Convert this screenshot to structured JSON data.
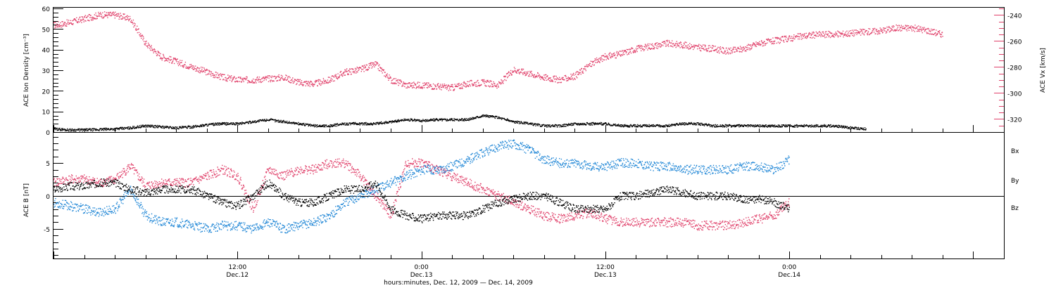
{
  "colors": {
    "density": "#000000",
    "speed": "#e0406a",
    "bx": "#000000",
    "by": "#1f86d6",
    "bz": "#e0406a",
    "axis": "#000000"
  },
  "chart_data": [
    {
      "type": "scatter",
      "panel": "top",
      "ylabel_left": "ACE Ion Density [cm⁻³]",
      "ylabel_right": "ACE Vx [km/s]",
      "yticks_left": [
        "0",
        "10",
        "20",
        "30",
        "40",
        "50",
        "60"
      ],
      "yticks_right": [
        "-240",
        "-260",
        "-280",
        "-300",
        "-320"
      ],
      "ylim_left": [
        0,
        60
      ],
      "ylim_right": [
        -330,
        -235
      ],
      "x_hours": [
        0,
        62
      ],
      "series": [
        {
          "axis": "left",
          "color": "#000000",
          "x": [
            0,
            1,
            2,
            3,
            4,
            5,
            6,
            7,
            8,
            9,
            10,
            11,
            12,
            13,
            14,
            15,
            16,
            17,
            18,
            19,
            20,
            21,
            22,
            23,
            24,
            25,
            26,
            27,
            28,
            29,
            30,
            31,
            32,
            33,
            34,
            35,
            36,
            37,
            38,
            39,
            40,
            41,
            42,
            43,
            44,
            45,
            46,
            47,
            48,
            49,
            50,
            51,
            52,
            53
          ],
          "y": [
            1.5,
            1,
            1,
            1.2,
            1.5,
            2,
            3,
            2.5,
            2,
            2.5,
            3.5,
            4,
            4,
            5,
            6,
            5,
            4,
            3,
            3,
            4,
            4,
            4,
            5,
            6,
            5.5,
            6,
            6,
            6,
            8,
            7,
            5,
            4,
            3,
            3,
            4,
            4,
            4,
            3,
            3,
            3,
            3,
            4,
            4,
            3,
            3,
            3,
            3,
            3,
            3,
            3,
            3,
            3,
            2,
            1.5
          ]
        },
        {
          "axis": "right",
          "color": "#e0406a",
          "x": [
            0,
            1,
            2,
            3,
            4,
            5,
            6,
            7,
            8,
            9,
            10,
            11,
            12,
            13,
            14,
            15,
            16,
            17,
            18,
            19,
            20,
            21,
            22,
            23,
            24,
            25,
            26,
            27,
            28,
            29,
            30,
            31,
            32,
            33,
            34,
            35,
            36,
            37,
            38,
            39,
            40,
            41,
            42,
            43,
            44,
            45,
            46,
            47,
            48,
            49,
            50,
            51,
            52,
            53,
            54,
            55,
            56,
            57,
            58
          ],
          "y": [
            -248,
            -246,
            -243,
            -240,
            -240,
            -243,
            -262,
            -272,
            -276,
            -280,
            -284,
            -288,
            -290,
            -290,
            -289,
            -288,
            -292,
            -293,
            -290,
            -284,
            -282,
            -278,
            -290,
            -294,
            -294,
            -295,
            -296,
            -293,
            -292,
            -294,
            -282,
            -285,
            -288,
            -290,
            -287,
            -278,
            -272,
            -270,
            -266,
            -264,
            -262,
            -263,
            -265,
            -266,
            -268,
            -266,
            -262,
            -260,
            -258,
            -256,
            -255,
            -255,
            -254,
            -253,
            -252,
            -250,
            -250,
            -252,
            -255
          ]
        }
      ]
    },
    {
      "type": "scatter",
      "panel": "bottom",
      "ylabel_left": "ACE B [nT]",
      "yticks_left": [
        "-5",
        "0",
        "5"
      ],
      "ylim_left": [
        -9.5,
        9.5
      ],
      "x_hours": [
        0,
        62
      ],
      "xticks": [
        {
          "t": 12,
          "time": "12:00",
          "day": "Dec.12"
        },
        {
          "t": 24,
          "time": "0:00",
          "day": "Dec.13"
        },
        {
          "t": 36,
          "time": "12:00",
          "day": "Dec.13"
        },
        {
          "t": 48,
          "time": "0:00",
          "day": "Dec.14"
        }
      ],
      "xlabel": "hours:minutes, Dec. 12, 2009 — Dec. 14, 2009",
      "series": [
        {
          "name": "Bx",
          "color": "#000000",
          "x": [
            0,
            1,
            2,
            3,
            4,
            5,
            6,
            7,
            8,
            9,
            10,
            11,
            12,
            13,
            14,
            15,
            16,
            17,
            18,
            19,
            20,
            21,
            22,
            23,
            24,
            25,
            26,
            27,
            28,
            29,
            30,
            31,
            32,
            33,
            34,
            35,
            36,
            37,
            38,
            39,
            40,
            41,
            42,
            43,
            44,
            45,
            46,
            47,
            48
          ],
          "y": [
            1,
            1.5,
            1.5,
            2,
            2,
            1,
            0.5,
            1,
            1,
            1,
            0,
            -1,
            -1.5,
            0,
            2,
            0,
            -1,
            -1,
            0,
            1,
            1,
            2,
            -2,
            -3,
            -3.5,
            -3,
            -3,
            -3,
            -2,
            -1,
            -0.5,
            0,
            0,
            -1,
            -2,
            -2,
            -2,
            0,
            0,
            0.5,
            1,
            0.5,
            0,
            0,
            0,
            -0.5,
            -0.5,
            -1,
            -2
          ]
        },
        {
          "name": "By",
          "color": "#1f86d6",
          "x": [
            0,
            1,
            2,
            3,
            4,
            5,
            6,
            7,
            8,
            9,
            10,
            11,
            12,
            13,
            14,
            15,
            16,
            17,
            18,
            19,
            20,
            21,
            22,
            23,
            24,
            25,
            26,
            27,
            28,
            29,
            30,
            31,
            32,
            33,
            34,
            35,
            36,
            37,
            38,
            39,
            40,
            41,
            42,
            43,
            44,
            45,
            46,
            47,
            48
          ],
          "y": [
            -1,
            -1.5,
            -2,
            -2.5,
            -2,
            1,
            -3,
            -4,
            -4,
            -4.5,
            -5,
            -4.5,
            -4.5,
            -5,
            -4,
            -5,
            -4.5,
            -4,
            -3,
            -1,
            0,
            1,
            2,
            3,
            4,
            4,
            4.5,
            5.5,
            6.5,
            7.5,
            8,
            7,
            5.5,
            5,
            5,
            4.5,
            4.5,
            5,
            5,
            4.5,
            4.5,
            4,
            4,
            4,
            4,
            4.5,
            4.5,
            4,
            5.5
          ]
        },
        {
          "name": "Bz",
          "color": "#e0406a",
          "x": [
            0,
            1,
            2,
            3,
            4,
            5,
            6,
            7,
            8,
            9,
            10,
            11,
            12,
            13,
            14,
            15,
            16,
            17,
            18,
            19,
            20,
            21,
            22,
            23,
            24,
            25,
            26,
            27,
            28,
            29,
            30,
            31,
            32,
            33,
            34,
            35,
            36,
            37,
            38,
            39,
            40,
            41,
            42,
            43,
            44,
            45,
            46,
            47,
            48
          ],
          "y": [
            2,
            2.5,
            2.5,
            2,
            2.5,
            4.5,
            1.5,
            2,
            2,
            2,
            3,
            4,
            3,
            -2,
            4,
            3,
            4,
            4,
            5,
            5,
            3,
            0,
            -3,
            5,
            5,
            4,
            3,
            2,
            1,
            0,
            -1,
            -2,
            -3,
            -3.5,
            -3,
            -2.5,
            -3.5,
            -4,
            -4,
            -4,
            -4,
            -4,
            -4.5,
            -4.5,
            -4.5,
            -4,
            -3.5,
            -3,
            -1
          ]
        }
      ]
    }
  ]
}
